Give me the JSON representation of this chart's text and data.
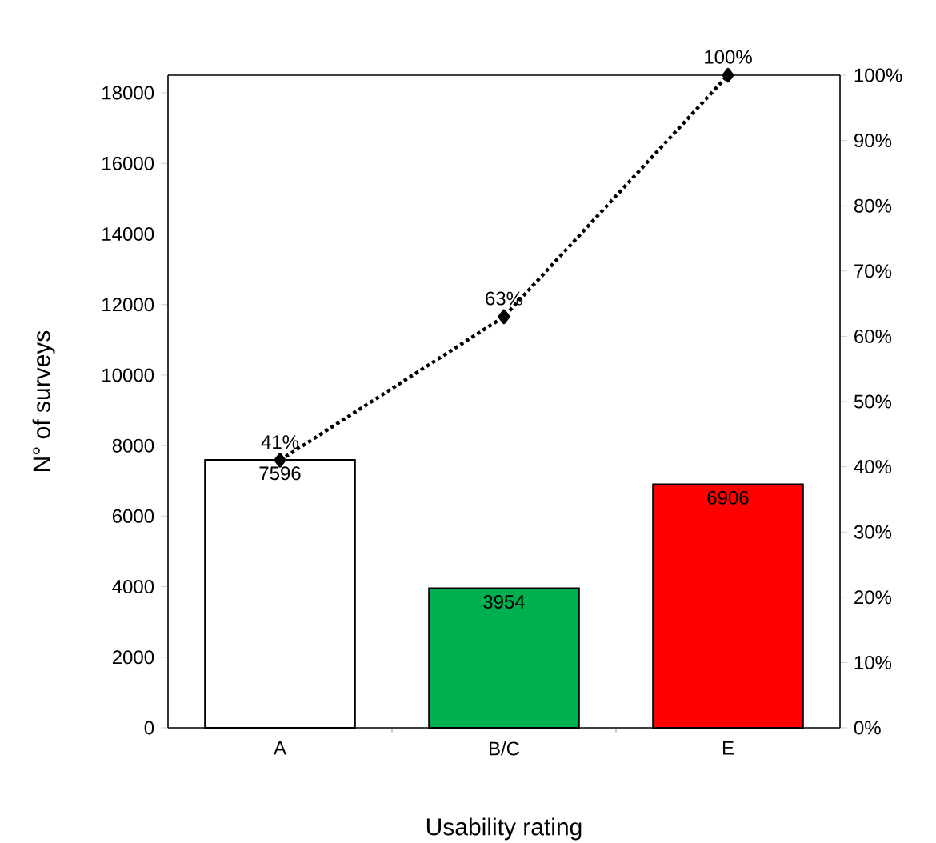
{
  "chart_data": {
    "type": "bar",
    "xlabel": "Usability rating",
    "ylabel": "N° of surveys",
    "categories": [
      "A",
      "B/C",
      "E"
    ],
    "series": [
      {
        "values": [
          7596,
          3954,
          6906
        ],
        "colors": [
          "#ffffff",
          "#00b050",
          "#ff0000"
        ],
        "value_labels": [
          "7596",
          "3954",
          "6906"
        ]
      },
      {
        "type": "line",
        "axis": "y2",
        "color": "#000000",
        "marker": "diamond",
        "line_style": "dotted",
        "values": [
          41,
          63,
          100
        ],
        "value_labels": [
          "41%",
          "63%",
          "100%"
        ]
      }
    ],
    "ylim": [
      0,
      18500
    ],
    "yticks": [
      0,
      2000,
      4000,
      6000,
      8000,
      10000,
      12000,
      14000,
      16000,
      18000
    ],
    "y2lim": [
      0,
      100
    ],
    "y2ticks": [
      {
        "value": 0,
        "label": "0%"
      },
      {
        "value": 10,
        "label": "10%"
      },
      {
        "value": 20,
        "label": "20%"
      },
      {
        "value": 30,
        "label": "30%"
      },
      {
        "value": 40,
        "label": "40%"
      },
      {
        "value": 50,
        "label": "50%"
      },
      {
        "value": 60,
        "label": "60%"
      },
      {
        "value": 70,
        "label": "70%"
      },
      {
        "value": 80,
        "label": "80%"
      },
      {
        "value": 90,
        "label": "90%"
      },
      {
        "value": 100,
        "label": "100%"
      }
    ]
  }
}
